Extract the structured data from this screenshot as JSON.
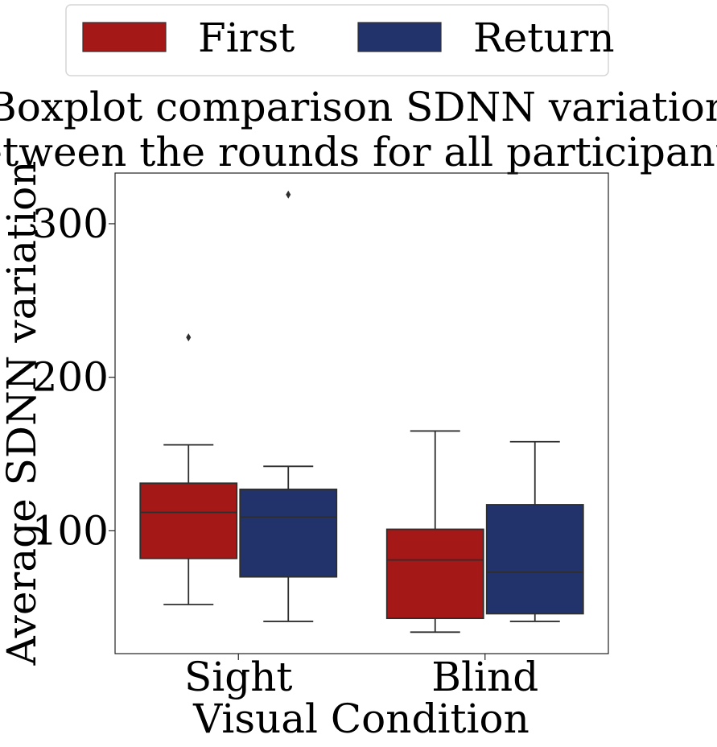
{
  "chart_data": {
    "type": "boxplot",
    "title_lines": [
      "Boxplot comparison SDNN variation",
      "between the rounds for all participants."
    ],
    "xlabel": "Visual Condition",
    "ylabel": "Average SDNN variation",
    "categories": [
      "Sight",
      "Blind"
    ],
    "yticks": [
      100,
      200,
      300
    ],
    "ylim": [
      20,
      333
    ],
    "legend_position": "top-center",
    "series": [
      {
        "name": "First",
        "color": "#a51818",
        "boxes": [
          {
            "whisker_low": 52,
            "q1": 82,
            "median": 112,
            "q3": 131,
            "whisker_high": 156,
            "outliers": [
              226
            ]
          },
          {
            "whisker_low": 34,
            "q1": 43,
            "median": 81,
            "q3": 101,
            "whisker_high": 165,
            "outliers": []
          }
        ]
      },
      {
        "name": "Return",
        "color": "#22336b",
        "boxes": [
          {
            "whisker_low": 41,
            "q1": 70,
            "median": 109,
            "q3": 127,
            "whisker_high": 142,
            "outliers": [
              319
            ]
          },
          {
            "whisker_low": 41,
            "q1": 46,
            "median": 73,
            "q3": 117,
            "whisker_high": 158,
            "outliers": []
          }
        ]
      }
    ]
  }
}
